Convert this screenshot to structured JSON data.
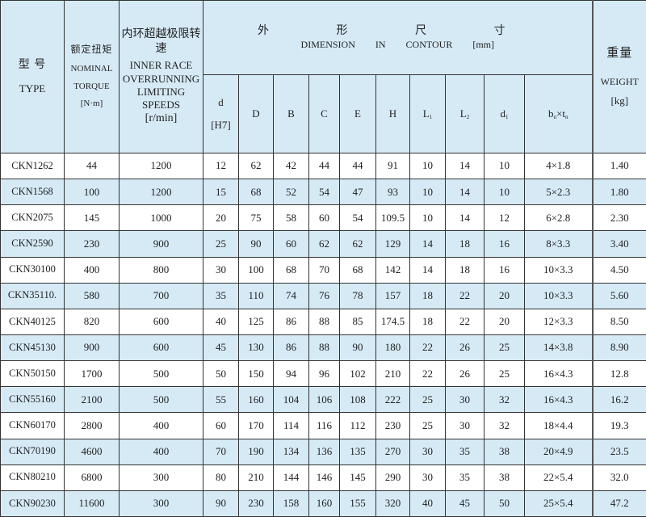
{
  "header": {
    "type_zh": "型 号",
    "type_en": "TYPE",
    "torque_zh": "额定扭矩",
    "torque_en1": "NOMINAL",
    "torque_en2": "TORQUE",
    "torque_unit": "[N·m]",
    "speed_zh": "内环超越极限转速",
    "speed_en1": "INNER RACE",
    "speed_en2": "OVERRUNNING",
    "speed_en3": "LIMITING SPEEDS",
    "speed_unit": "[r/min]",
    "dim_zh": "外 形 尺 寸",
    "dim_en": "DIMENSION IN CONTOUR [mm]",
    "weight_zh": "重量",
    "weight_en": "WEIGHT",
    "weight_unit": "[kg]",
    "dim_cols": [
      {
        "main": "d",
        "sub": "",
        "extra": "[H7]"
      },
      {
        "main": "D",
        "sub": ""
      },
      {
        "main": "B",
        "sub": ""
      },
      {
        "main": "C",
        "sub": ""
      },
      {
        "main": "E",
        "sub": ""
      },
      {
        "main": "H",
        "sub": ""
      },
      {
        "main": "L",
        "sub": "1"
      },
      {
        "main": "L",
        "sub": "2"
      },
      {
        "main": "d",
        "sub": "1"
      },
      {
        "main": "b",
        "sub": "n",
        "times": "×",
        "main2": "t",
        "sub2": "n"
      }
    ]
  },
  "rows": [
    [
      "CKN1262",
      "44",
      "1200",
      "12",
      "62",
      "42",
      "44",
      "44",
      "91",
      "10",
      "14",
      "10",
      "4×1.8",
      "1.40"
    ],
    [
      "CKN1568",
      "100",
      "1200",
      "15",
      "68",
      "52",
      "54",
      "47",
      "93",
      "10",
      "14",
      "10",
      "5×2.3",
      "1.80"
    ],
    [
      "CKN2075",
      "145",
      "1000",
      "20",
      "75",
      "58",
      "60",
      "54",
      "109.5",
      "10",
      "14",
      "12",
      "6×2.8",
      "2.30"
    ],
    [
      "CKN2590",
      "230",
      "900",
      "25",
      "90",
      "60",
      "62",
      "62",
      "129",
      "14",
      "18",
      "16",
      "8×3.3",
      "3.40"
    ],
    [
      "CKN30100",
      "400",
      "800",
      "30",
      "100",
      "68",
      "70",
      "68",
      "142",
      "14",
      "18",
      "16",
      "10×3.3",
      "4.50"
    ],
    [
      "CKN35110.",
      "580",
      "700",
      "35",
      "110",
      "74",
      "76",
      "78",
      "157",
      "18",
      "22",
      "20",
      "10×3.3",
      "5.60"
    ],
    [
      "CKN40125",
      "820",
      "600",
      "40",
      "125",
      "86",
      "88",
      "85",
      "174.5",
      "18",
      "22",
      "20",
      "12×3.3",
      "8.50"
    ],
    [
      "CKN45130",
      "900",
      "600",
      "45",
      "130",
      "86",
      "88",
      "90",
      "180",
      "22",
      "26",
      "25",
      "14×3.8",
      "8.90"
    ],
    [
      "CKN50150",
      "1700",
      "500",
      "50",
      "150",
      "94",
      "96",
      "102",
      "210",
      "22",
      "26",
      "25",
      "16×4.3",
      "12.8"
    ],
    [
      "CKN55160",
      "2100",
      "500",
      "55",
      "160",
      "104",
      "106",
      "108",
      "222",
      "25",
      "30",
      "32",
      "16×4.3",
      "16.2"
    ],
    [
      "CKN60170",
      "2800",
      "400",
      "60",
      "170",
      "114",
      "116",
      "112",
      "230",
      "25",
      "30",
      "32",
      "18×4.4",
      "19.3"
    ],
    [
      "CKN70190",
      "4600",
      "400",
      "70",
      "190",
      "134",
      "136",
      "135",
      "270",
      "30",
      "35",
      "38",
      "20×4.9",
      "23.5"
    ],
    [
      "CKN80210",
      "6800",
      "300",
      "80",
      "210",
      "144",
      "146",
      "145",
      "290",
      "30",
      "35",
      "38",
      "22×5.4",
      "32.0"
    ],
    [
      "CKN90230",
      "11600",
      "300",
      "90",
      "230",
      "158",
      "160",
      "155",
      "320",
      "40",
      "45",
      "50",
      "25×5.4",
      "47.2"
    ]
  ],
  "colors": {
    "header_bg": "#d6eaf6",
    "alt_row_bg": "#d6eaf6",
    "border": "#333333"
  }
}
